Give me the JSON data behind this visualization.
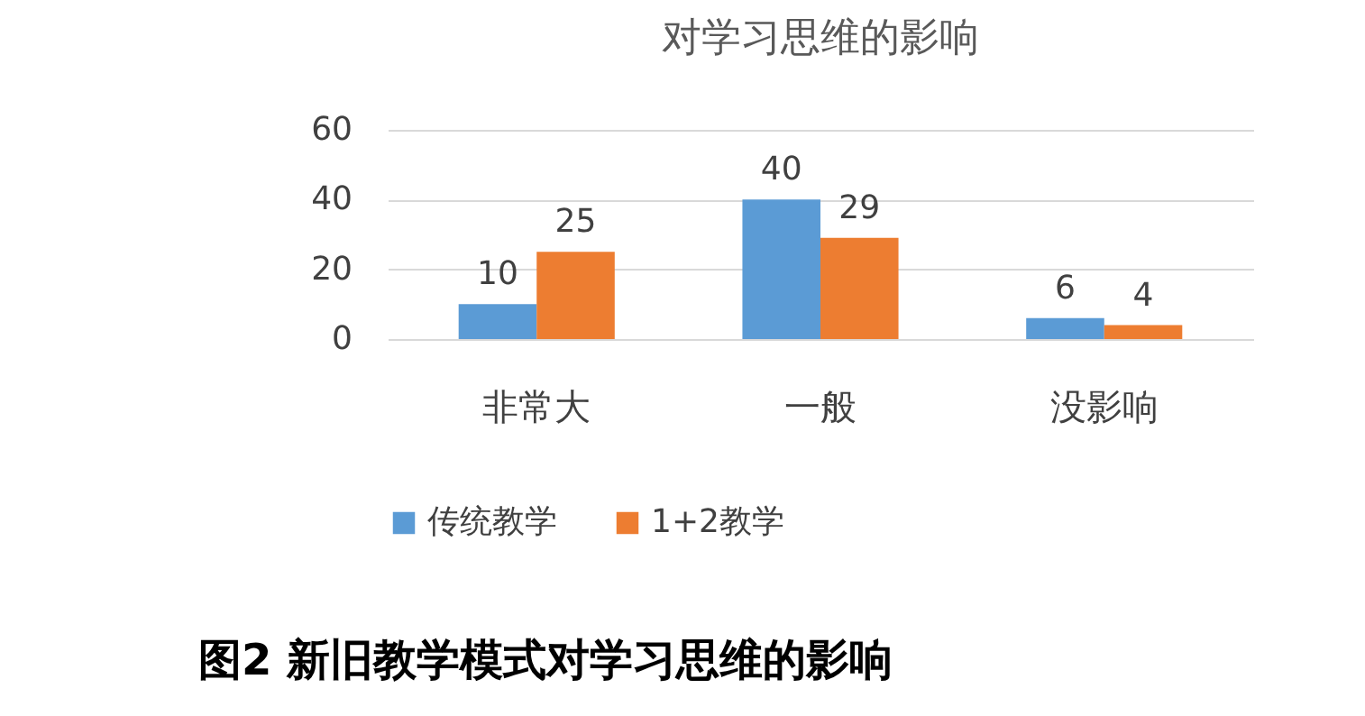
{
  "chart_data": {
    "type": "bar",
    "title": "对学习思维的影响",
    "categories": [
      "非常大",
      "一般",
      "没影响"
    ],
    "series": [
      {
        "name": "传统教学",
        "color": "#5b9bd5",
        "values": [
          10,
          40,
          6
        ]
      },
      {
        "name": "1+2教学",
        "color": "#ed7d31",
        "values": [
          25,
          29,
          4
        ]
      }
    ],
    "ylim": [
      0,
      60
    ],
    "yticks": [
      0,
      20,
      40,
      60
    ],
    "grid": "y",
    "legend": "bottom",
    "data_labels": true,
    "annotations": [
      "图2   新旧教学模式对学习思维的影响"
    ]
  }
}
